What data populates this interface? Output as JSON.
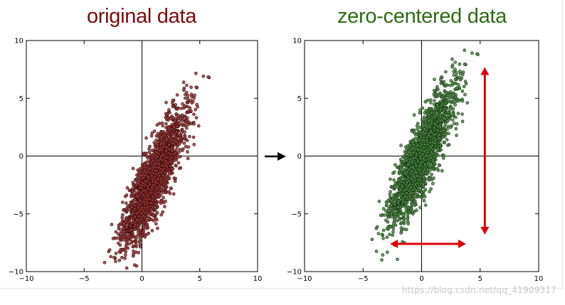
{
  "chart_data": [
    {
      "type": "scatter",
      "title": "original data",
      "title_color": "#7b0a0a",
      "point_fill": "#9e3a3a",
      "point_stroke": "#2a0505",
      "xlim": [
        -10,
        10
      ],
      "ylim": [
        -10,
        10
      ],
      "xticks": [
        -10,
        -5,
        0,
        5,
        10
      ],
      "yticks": [
        -10,
        -5,
        0,
        5,
        10
      ],
      "distribution": {
        "n": 2000,
        "mean": [
          1.0,
          -2.0
        ],
        "axis_angle_deg": 67,
        "sd_major": 3.2,
        "sd_minor": 0.65,
        "seed": 7
      }
    },
    {
      "type": "scatter",
      "title": "zero-centered data",
      "title_color": "#2e6b14",
      "point_fill": "#4f8a45",
      "point_stroke": "#0d2a0a",
      "xlim": [
        -10,
        10
      ],
      "ylim": [
        -10,
        10
      ],
      "xticks": [
        -10,
        -5,
        0,
        5,
        10
      ],
      "yticks": [
        -10,
        -5,
        0,
        5,
        10
      ],
      "distribution": {
        "n": 2000,
        "mean": [
          0.0,
          0.0
        ],
        "axis_angle_deg": 67,
        "sd_major": 3.2,
        "sd_minor": 0.65,
        "seed": 7
      },
      "annotations": [
        {
          "kind": "double-arrow",
          "orientation": "vertical",
          "x": 5.4,
          "from": -6.8,
          "to": 7.7,
          "color": "#dd0000"
        },
        {
          "kind": "double-arrow",
          "orientation": "horizontal",
          "y": -7.6,
          "from": -2.7,
          "to": 3.8,
          "color": "#dd0000"
        }
      ]
    }
  ],
  "transition_arrow_color": "#000000",
  "watermark": "https://blog.csdn.net/qq_41909317"
}
